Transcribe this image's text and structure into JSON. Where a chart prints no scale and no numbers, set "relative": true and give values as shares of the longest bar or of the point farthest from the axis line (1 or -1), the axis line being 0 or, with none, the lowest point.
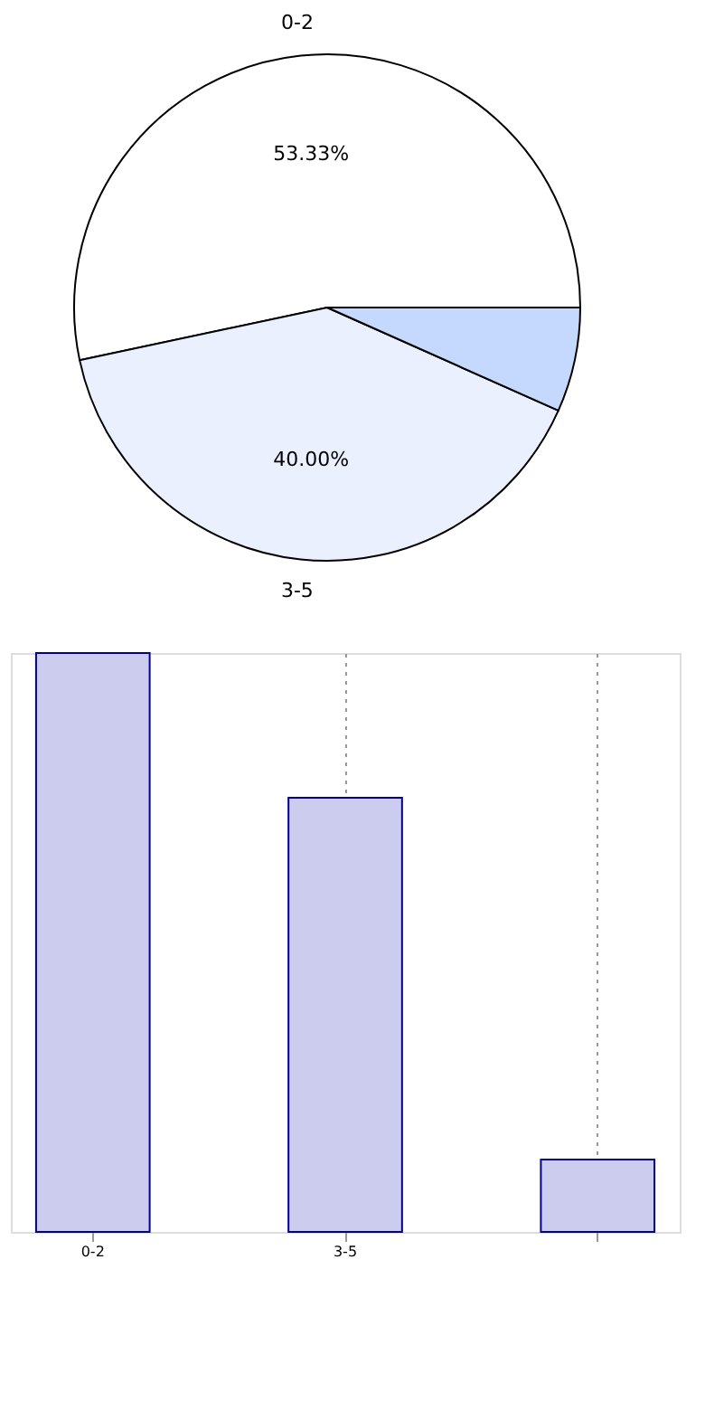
{
  "chart_data": [
    {
      "type": "pie",
      "categories": [
        "0-2",
        "3-5",
        null
      ],
      "values": [
        53.33,
        40.0,
        6.67
      ],
      "colors": [
        "#ffffff",
        "#eaf0fe",
        "#c5d9fe"
      ],
      "value_labels": [
        "53.33%",
        "40.00%",
        null
      ]
    },
    {
      "type": "bar",
      "categories": [
        "0-2",
        "3-5",
        null
      ],
      "values": [
        1,
        0.75,
        0.125
      ],
      "relative": true,
      "color": "#ccccee",
      "grid": "x"
    }
  ]
}
